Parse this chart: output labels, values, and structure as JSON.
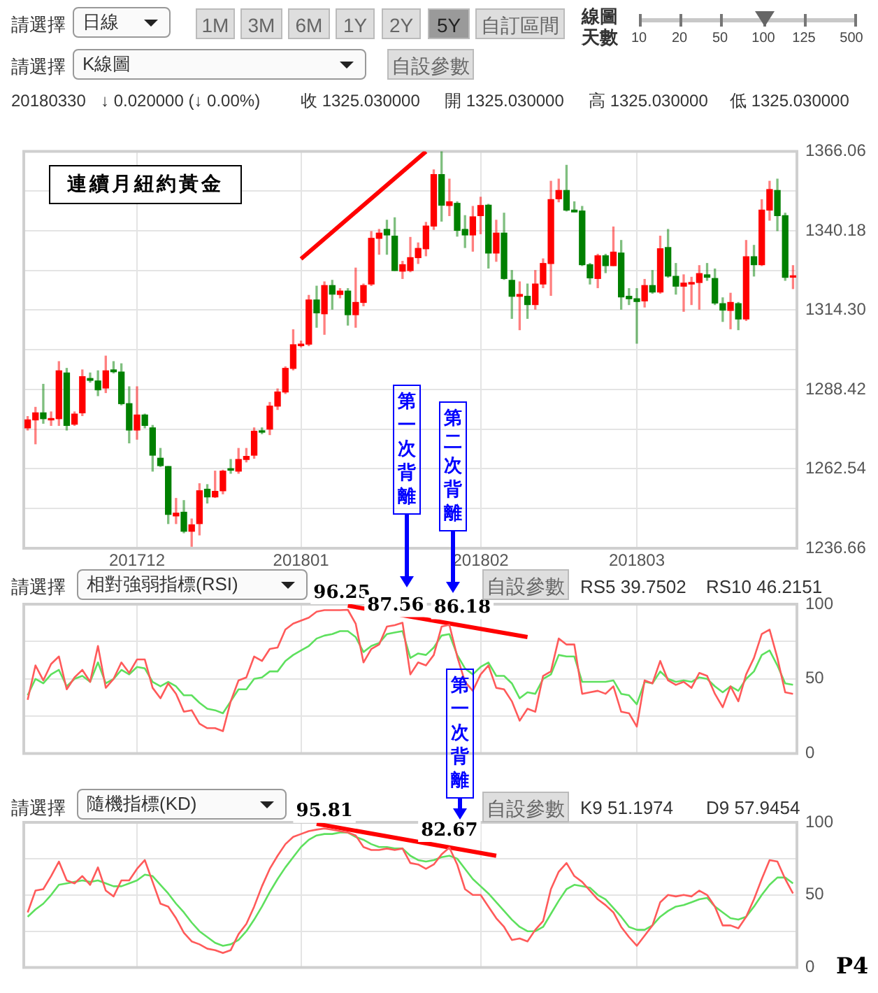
{
  "chart_data": [
    {
      "type": "candlestick",
      "title": "連續月紐約黃金",
      "categories": [
        null,
        null,
        null,
        null,
        null,
        null,
        null,
        null,
        null,
        null,
        null,
        null,
        null,
        null,
        "201712",
        null,
        null,
        null,
        null,
        null,
        null,
        null,
        null,
        null,
        null,
        null,
        null,
        null,
        null,
        null,
        null,
        null,
        null,
        null,
        null,
        "201801",
        null,
        null,
        null,
        null,
        null,
        null,
        null,
        null,
        null,
        null,
        null,
        null,
        null,
        null,
        null,
        null,
        null,
        null,
        null,
        null,
        null,
        null,
        "201802",
        null,
        null,
        null,
        null,
        null,
        null,
        null,
        null,
        null,
        null,
        null,
        null,
        null,
        null,
        null,
        null,
        null,
        null,
        null,
        "201803",
        null,
        null,
        null,
        null,
        null,
        null,
        null,
        null,
        null,
        null,
        null,
        null,
        null,
        null,
        null,
        null,
        null,
        null,
        null,
        null
      ],
      "ohlc": [
        [
          1275.9,
          1279.6,
          1275.2,
          1278.5
        ],
        [
          1278.5,
          1282.6,
          1270.7,
          1280.8
        ],
        [
          1280.8,
          1290.1,
          1277.4,
          1278.9
        ],
        [
          1278.5,
          1281.1,
          1276.7,
          1278.9
        ],
        [
          1278.9,
          1297.5,
          1276.7,
          1294.5
        ],
        [
          1293.8,
          1295.3,
          1275.2,
          1276.7
        ],
        [
          1277.1,
          1281.1,
          1276.7,
          1280.4
        ],
        [
          1280.8,
          1294.8,
          1279.9,
          1292.6
        ],
        [
          1292.0,
          1293.8,
          1290.8,
          1291.4
        ],
        [
          1291.2,
          1294.5,
          1286.4,
          1288.3
        ],
        [
          1288.9,
          1299.3,
          1287.4,
          1294.5
        ],
        [
          1294.8,
          1297.5,
          1293.8,
          1294.2
        ],
        [
          1294.1,
          1296.8,
          1283.4,
          1283.8
        ],
        [
          1283.8,
          1289.3,
          1271.0,
          1275.2
        ],
        [
          1275.2,
          1289.3,
          1272.2,
          1280.1
        ],
        [
          1280.1,
          1280.4,
          1275.9,
          1276.7
        ],
        [
          1275.9,
          1276.7,
          1261.8,
          1267.0
        ],
        [
          1266.0,
          1269.2,
          1263.3,
          1263.6
        ],
        [
          1263.3,
          1263.3,
          1244.7,
          1247.7
        ],
        [
          1247.2,
          1252.9,
          1244.7,
          1248.1
        ],
        [
          1248.4,
          1252.2,
          1241.7,
          1242.2
        ],
        [
          1242.2,
          1246.2,
          1237.3,
          1244.3
        ],
        [
          1244.7,
          1257.7,
          1241.0,
          1255.4
        ],
        [
          1255.9,
          1257.4,
          1251.4,
          1253.4
        ],
        [
          1253.4,
          1261.8,
          1253.2,
          1255.2
        ],
        [
          1255.4,
          1262.1,
          1254.4,
          1261.8
        ],
        [
          1262.6,
          1265.6,
          1261.1,
          1262.1
        ],
        [
          1261.8,
          1269.2,
          1261.1,
          1265.6
        ],
        [
          1265.6,
          1269.2,
          1264.8,
          1266.6
        ],
        [
          1267.0,
          1275.9,
          1266.0,
          1274.8
        ],
        [
          1274.9,
          1275.9,
          1274.0,
          1274.5
        ],
        [
          1275.5,
          1284.2,
          1273.7,
          1283.0
        ],
        [
          1283.0,
          1288.6,
          1281.9,
          1287.6
        ],
        [
          1287.6,
          1295.8,
          1287.1,
          1295.3
        ],
        [
          1295.3,
          1307.9,
          1294.8,
          1303.0
        ],
        [
          1302.7,
          1304.2,
          1302.3,
          1303.2
        ],
        [
          1303.2,
          1319.1,
          1302.7,
          1317.6
        ],
        [
          1317.6,
          1322.1,
          1308.7,
          1313.4
        ],
        [
          1313.1,
          1323.5,
          1306.4,
          1322.3
        ],
        [
          1322.3,
          1324.0,
          1314.6,
          1319.5
        ],
        [
          1319.4,
          1321.3,
          1318.3,
          1320.5
        ],
        [
          1320.5,
          1321.3,
          1309.4,
          1312.8
        ],
        [
          1312.8,
          1328.0,
          1308.7,
          1316.8
        ],
        [
          1316.8,
          1322.8,
          1315.7,
          1322.3
        ],
        [
          1322.8,
          1339.9,
          1322.3,
          1337.7
        ],
        [
          1337.7,
          1340.6,
          1332.5,
          1339.4
        ],
        [
          1340.6,
          1343.6,
          1332.5,
          1338.8
        ],
        [
          1338.4,
          1344.4,
          1327.2,
          1327.2
        ],
        [
          1327.0,
          1330.2,
          1324.6,
          1329.1
        ],
        [
          1327.2,
          1338.0,
          1326.8,
          1331.4
        ],
        [
          1331.4,
          1336.2,
          1329.5,
          1334.4
        ],
        [
          1334.3,
          1342.9,
          1332.0,
          1341.7
        ],
        [
          1341.7,
          1360.0,
          1340.6,
          1358.5
        ],
        [
          1358.5,
          1366.0,
          1343.3,
          1348.5
        ],
        [
          1348.4,
          1357.0,
          1345.1,
          1349.6
        ],
        [
          1349.1,
          1349.6,
          1338.4,
          1340.3
        ],
        [
          1340.6,
          1345.1,
          1334.7,
          1338.8
        ],
        [
          1338.8,
          1348.1,
          1333.5,
          1344.7
        ],
        [
          1345.1,
          1351.1,
          1339.2,
          1348.4
        ],
        [
          1348.5,
          1348.8,
          1328.0,
          1332.9
        ],
        [
          1332.9,
          1343.6,
          1330.2,
          1339.4
        ],
        [
          1339.4,
          1345.9,
          1324.3,
          1324.6
        ],
        [
          1324.0,
          1327.2,
          1311.6,
          1318.8
        ],
        [
          1318.8,
          1323.5,
          1307.9,
          1319.4
        ],
        [
          1318.8,
          1322.8,
          1311.6,
          1316.1
        ],
        [
          1316.1,
          1327.2,
          1314.6,
          1322.8
        ],
        [
          1322.8,
          1331.0,
          1321.6,
          1329.5
        ],
        [
          1329.5,
          1356.3,
          1319.1,
          1350.3
        ],
        [
          1350.6,
          1357.0,
          1349.6,
          1353.3
        ],
        [
          1353.3,
          1361.5,
          1346.6,
          1346.9
        ],
        [
          1346.9,
          1349.6,
          1346.3,
          1346.3
        ],
        [
          1346.6,
          1348.1,
          1328.8,
          1329.1
        ],
        [
          1329.1,
          1329.5,
          1322.8,
          1324.8
        ],
        [
          1324.6,
          1332.5,
          1321.6,
          1332.0
        ],
        [
          1332.0,
          1332.5,
          1326.5,
          1328.8
        ],
        [
          1328.8,
          1341.4,
          1328.8,
          1333.2
        ],
        [
          1332.9,
          1337.0,
          1314.6,
          1318.6
        ],
        [
          1318.8,
          1321.3,
          1316.1,
          1318.0
        ],
        [
          1318.0,
          1321.3,
          1303.5,
          1317.1
        ],
        [
          1317.3,
          1324.3,
          1315.3,
          1322.3
        ],
        [
          1322.3,
          1327.2,
          1319.8,
          1320.2
        ],
        [
          1320.2,
          1338.4,
          1319.8,
          1334.3
        ],
        [
          1334.7,
          1340.6,
          1325.0,
          1325.4
        ],
        [
          1325.3,
          1329.5,
          1319.5,
          1322.1
        ],
        [
          1322.1,
          1325.8,
          1313.9,
          1323.1
        ],
        [
          1322.8,
          1325.0,
          1316.1,
          1323.3
        ],
        [
          1323.3,
          1328.8,
          1314.6,
          1326.2
        ],
        [
          1325.8,
          1329.5,
          1324.0,
          1325.0
        ],
        [
          1324.6,
          1327.7,
          1316.1,
          1316.6
        ],
        [
          1316.4,
          1318.3,
          1310.6,
          1314.3
        ],
        [
          1314.2,
          1319.8,
          1308.2,
          1316.8
        ],
        [
          1316.4,
          1316.8,
          1307.9,
          1311.4
        ],
        [
          1311.4,
          1337.0,
          1310.9,
          1331.7
        ],
        [
          1331.7,
          1335.4,
          1325.4,
          1329.1
        ],
        [
          1329.1,
          1350.3,
          1328.8,
          1346.9
        ],
        [
          1346.9,
          1356.3,
          1343.6,
          1353.6
        ],
        [
          1353.3,
          1357.0,
          1340.2,
          1345.1
        ],
        [
          1345.1,
          1345.9,
          1324.0,
          1325.0
        ],
        [
          1325.03,
          1328.8,
          1321.3,
          1325.03
        ]
      ],
      "colors": [
        "#ff0000",
        "#ff0000",
        "#008000",
        "#ff0000",
        "#ff0000",
        "#008000",
        "#ff0000",
        "#ff0000",
        "#008000",
        "#008000",
        "#ff0000",
        "#008000",
        "#008000",
        "#008000",
        "#ff0000",
        "#008000",
        "#008000",
        "#008000",
        "#008000",
        "#ff0000",
        "#008000",
        "#ff0000",
        "#ff0000",
        "#008000",
        "#ff0000",
        "#ff0000",
        "#008000",
        "#ff0000",
        "#ff0000",
        "#ff0000",
        "#008000",
        "#ff0000",
        "#ff0000",
        "#ff0000",
        "#ff0000",
        "#ff0000",
        "#ff0000",
        "#008000",
        "#ff0000",
        "#008000",
        "#ff0000",
        "#008000",
        "#ff0000",
        "#ff0000",
        "#ff0000",
        "#ff0000",
        "#008000",
        "#008000",
        "#ff0000",
        "#ff0000",
        "#ff0000",
        "#ff0000",
        "#ff0000",
        "#008000",
        "#ff0000",
        "#008000",
        "#008000",
        "#ff0000",
        "#ff0000",
        "#008000",
        "#ff0000",
        "#008000",
        "#008000",
        "#ff0000",
        "#008000",
        "#ff0000",
        "#ff0000",
        "#ff0000",
        "#ff0000",
        "#008000",
        "#008000",
        "#008000",
        "#008000",
        "#ff0000",
        "#008000",
        "#ff0000",
        "#008000",
        "#008000",
        "#008000",
        "#ff0000",
        "#008000",
        "#ff0000",
        "#008000",
        "#008000",
        "#ff0000",
        "#ff0000",
        "#ff0000",
        "#008000",
        "#008000",
        "#008000",
        "#ff0000",
        "#008000",
        "#ff0000",
        "#008000",
        "#ff0000",
        "#ff0000",
        "#008000",
        "#008000",
        "#ff0000"
      ],
      "series": [
        {
          "type": "line",
          "color": "#ff0000",
          "values": [
            null,
            null,
            null,
            null,
            null,
            null,
            null,
            null,
            null,
            null,
            null,
            null,
            null,
            null,
            null,
            null,
            null,
            null,
            null,
            null,
            null,
            null,
            null,
            null,
            null,
            null,
            null,
            null,
            null,
            null,
            null,
            null,
            null,
            null,
            null,
            1331,
            null,
            null,
            null,
            null,
            null,
            null,
            null,
            null,
            null,
            null,
            null,
            null,
            null,
            null,
            null,
            1366,
            null,
            null,
            null,
            null,
            null,
            null,
            null,
            null,
            null,
            null,
            null,
            null,
            null,
            null,
            null,
            null,
            null,
            null,
            null,
            null,
            null,
            null,
            null,
            null,
            null,
            null,
            null,
            null,
            null,
            null,
            null,
            null,
            null,
            null,
            null,
            null,
            null,
            null,
            null,
            null,
            null,
            null,
            null,
            null,
            null,
            null,
            null
          ]
        }
      ],
      "ylim": [
        1236.66,
        1366.06
      ],
      "yticks": [
        {
          "value": 1236.66,
          "label": "1236.66"
        },
        {
          "value": 1249.6,
          "label": null
        },
        {
          "value": 1262.54,
          "label": "1262.54"
        },
        {
          "value": 1275.48,
          "label": null
        },
        {
          "value": 1288.42,
          "label": "1288.42"
        },
        {
          "value": 1301.36,
          "label": null
        },
        {
          "value": 1314.3,
          "label": "1314.30"
        },
        {
          "value": 1327.24,
          "label": null
        },
        {
          "value": 1340.18,
          "label": "1340.18"
        },
        {
          "value": 1353.12,
          "label": null
        },
        {
          "value": 1366.06,
          "label": "1366.06"
        }
      ],
      "grid": true,
      "annotations": [
        "請選擇",
        "日線",
        "1M",
        "3M",
        "6M",
        "1Y",
        "2Y",
        "5Y",
        "自訂區間",
        "線圖天數",
        "10",
        "20",
        "50",
        "100",
        "125",
        "500",
        "請選擇",
        "K線圖",
        "自設參數",
        "20180330",
        "↓ 0.020000 (↓ 0.00%)",
        "收 1325.030000",
        "開 1325.030000",
        "高 1325.030000",
        "低 1325.030000",
        "第一次背離",
        "第二次背離"
      ]
    },
    {
      "type": "line",
      "categories": [
        null,
        null,
        null,
        null,
        null,
        null,
        null,
        null,
        null,
        null,
        null,
        null,
        null,
        null,
        "201712",
        null,
        null,
        null,
        null,
        null,
        null,
        null,
        null,
        null,
        null,
        null,
        null,
        null,
        null,
        null,
        null,
        null,
        null,
        null,
        null,
        "201801",
        null,
        null,
        null,
        null,
        null,
        null,
        null,
        null,
        null,
        null,
        null,
        null,
        null,
        null,
        null,
        null,
        null,
        null,
        null,
        null,
        null,
        null,
        "201802",
        null,
        null,
        null,
        null,
        null,
        null,
        null,
        null,
        null,
        null,
        null,
        null,
        null,
        null,
        null,
        null,
        null,
        null,
        null,
        "201803",
        null,
        null,
        null,
        null,
        null,
        null,
        null,
        null,
        null,
        null,
        null,
        null,
        null,
        null,
        null,
        null,
        null,
        null,
        null,
        null
      ],
      "tick_labels": "y",
      "series": [
        {
          "color": "#ff5a5a",
          "values": [
            36,
            59,
            49,
            60,
            65,
            43,
            51,
            56,
            48,
            72,
            44,
            50,
            61,
            54,
            63,
            63,
            44,
            37,
            47,
            40,
            28,
            29,
            20,
            17,
            17,
            15,
            35,
            49,
            51,
            65,
            62,
            70,
            71,
            83,
            87,
            89,
            91,
            95,
            96,
            96,
            96,
            96.25,
            87,
            61,
            70,
            73,
            85,
            86,
            87.56,
            53,
            61,
            59,
            66,
            85,
            86.18,
            65,
            48,
            42,
            53,
            59,
            44,
            43,
            35,
            22,
            30,
            28,
            52,
            55,
            77,
            73,
            73,
            40,
            41,
            42,
            40,
            45,
            28,
            27,
            18,
            49,
            47,
            62,
            49,
            46,
            48,
            44,
            54,
            52,
            40,
            31,
            45,
            35,
            53,
            64,
            80,
            83,
            64,
            41,
            40
          ],
          "value_labels": [
            null,
            null,
            null,
            null,
            null,
            null,
            null,
            null,
            null,
            null,
            null,
            null,
            null,
            null,
            null,
            null,
            null,
            null,
            null,
            null,
            null,
            null,
            null,
            null,
            null,
            null,
            null,
            null,
            null,
            null,
            null,
            null,
            null,
            null,
            null,
            null,
            null,
            null,
            null,
            null,
            null,
            "96.25",
            null,
            null,
            null,
            null,
            null,
            null,
            "87.56",
            null,
            null,
            null,
            null,
            null,
            "86.18",
            null,
            null,
            null,
            null,
            null,
            null,
            null,
            null,
            null,
            null,
            null,
            null,
            null,
            null,
            null,
            null,
            null,
            null,
            null,
            null,
            null,
            null,
            null,
            null,
            null,
            null,
            null,
            null,
            null,
            null,
            null,
            null,
            null,
            null,
            null,
            null,
            null,
            null,
            null,
            null,
            null,
            null,
            null,
            null
          ]
        },
        {
          "color": "#5ee05e",
          "values": [
            39,
            50,
            47,
            53,
            56,
            45,
            50,
            52,
            48,
            61,
            47,
            50,
            56,
            53,
            58,
            57,
            48,
            45,
            48,
            45,
            39,
            39,
            34,
            30,
            29,
            27,
            35,
            43,
            43,
            50,
            51,
            55,
            55,
            62,
            66,
            69,
            72,
            77,
            79,
            80,
            82,
            82,
            78,
            68,
            72,
            74,
            80,
            81,
            82,
            64,
            67,
            66,
            71,
            79,
            80,
            66,
            57,
            53,
            58,
            61,
            52,
            52,
            47,
            37,
            41,
            40,
            50,
            53,
            66,
            65,
            65,
            48,
            48,
            48,
            48,
            49,
            40,
            39,
            33,
            48,
            47,
            55,
            50,
            48,
            49,
            48,
            51,
            50,
            45,
            41,
            45,
            42,
            50,
            55,
            66,
            69,
            59,
            47,
            46
          ]
        },
        {
          "color": "#ff0000",
          "values": [
            null,
            null,
            null,
            null,
            null,
            null,
            null,
            null,
            null,
            null,
            null,
            null,
            null,
            null,
            null,
            null,
            null,
            null,
            null,
            null,
            null,
            null,
            null,
            null,
            null,
            null,
            null,
            null,
            null,
            null,
            null,
            null,
            null,
            null,
            null,
            null,
            null,
            null,
            null,
            null,
            null,
            99,
            null,
            null,
            null,
            null,
            null,
            null,
            null,
            null,
            null,
            null,
            null,
            null,
            null,
            null,
            null,
            null,
            null,
            null,
            null,
            null,
            null,
            null,
            78,
            null,
            null,
            null,
            null,
            null,
            null,
            null,
            null,
            null,
            null,
            null,
            null,
            null,
            null,
            null,
            null,
            null,
            null,
            null,
            null,
            null,
            null,
            null,
            null,
            null,
            null,
            null,
            null,
            null,
            null,
            null,
            null,
            null,
            null
          ]
        }
      ],
      "ylim": [
        0,
        100
      ],
      "yticks": [
        0,
        {
          "value": 25,
          "label": null
        },
        50,
        {
          "value": 75,
          "label": null
        },
        100
      ],
      "grid": true,
      "annotations": [
        "請選擇",
        "相對強弱指標(RSI)",
        "自設參數",
        "RS5 39.7502",
        "RS10 46.2151",
        "第一次背離"
      ]
    },
    {
      "type": "line",
      "categories": [
        null,
        null,
        null,
        null,
        null,
        null,
        null,
        null,
        null,
        null,
        null,
        null,
        null,
        null,
        "201712",
        null,
        null,
        null,
        null,
        null,
        null,
        null,
        null,
        null,
        null,
        null,
        null,
        null,
        null,
        null,
        null,
        null,
        null,
        null,
        null,
        "201801",
        null,
        null,
        null,
        null,
        null,
        null,
        null,
        null,
        null,
        null,
        null,
        null,
        null,
        null,
        null,
        null,
        null,
        null,
        null,
        null,
        null,
        null,
        "201802",
        null,
        null,
        null,
        null,
        null,
        null,
        null,
        null,
        null,
        null,
        null,
        null,
        null,
        null,
        null,
        null,
        null,
        null,
        null,
        "201803",
        null,
        null,
        null,
        null,
        null,
        null,
        null,
        null,
        null,
        null,
        null,
        null,
        null,
        null,
        null,
        null,
        null,
        null,
        null,
        null
      ],
      "tick_labels": "y",
      "series": [
        {
          "color": "#ff5a5a",
          "values": [
            38,
            53,
            54,
            63,
            73,
            60,
            58,
            63,
            57,
            69,
            53,
            49,
            60,
            60,
            68,
            74,
            59,
            44,
            42,
            34,
            24,
            18,
            16,
            13,
            12,
            10,
            12,
            23,
            30,
            42,
            56,
            68,
            77,
            85,
            90,
            92,
            94,
            95,
            95.81,
            95,
            94,
            93,
            91,
            83,
            81,
            81,
            82,
            81,
            82,
            72,
            71,
            68,
            71,
            78,
            82.67,
            71,
            54,
            50,
            50,
            42,
            34,
            28,
            19,
            20,
            18,
            26,
            32,
            54,
            66,
            72,
            63,
            59,
            53,
            47,
            43,
            38,
            28,
            21,
            15,
            22,
            29,
            45,
            50,
            49,
            50,
            49,
            53,
            50,
            42,
            29,
            29,
            27,
            35,
            47,
            61,
            74,
            73,
            61,
            51
          ],
          "value_labels": [
            null,
            null,
            null,
            null,
            null,
            null,
            null,
            null,
            null,
            null,
            null,
            null,
            null,
            null,
            null,
            null,
            null,
            null,
            null,
            null,
            null,
            null,
            null,
            null,
            null,
            null,
            null,
            null,
            null,
            null,
            null,
            null,
            null,
            null,
            null,
            null,
            null,
            null,
            "95.81",
            null,
            null,
            null,
            null,
            null,
            null,
            null,
            null,
            null,
            null,
            null,
            null,
            null,
            null,
            null,
            "82.67",
            null,
            null,
            null,
            null,
            null,
            null,
            null,
            null,
            null,
            null,
            null,
            null,
            null,
            null,
            null,
            null,
            null,
            null,
            null,
            null,
            null,
            null,
            null,
            null,
            null,
            null,
            null,
            null,
            null,
            null,
            null,
            null,
            null,
            null,
            null,
            null,
            null,
            null,
            null,
            null,
            null,
            null,
            null,
            null
          ]
        },
        {
          "color": "#5ee05e",
          "values": [
            35,
            40,
            44,
            50,
            57,
            58,
            59,
            60,
            59,
            60,
            58,
            56,
            56,
            58,
            60,
            64,
            63,
            57,
            51,
            44,
            38,
            31,
            25,
            21,
            17,
            15,
            16,
            19,
            25,
            33,
            42,
            52,
            61,
            69,
            76,
            83,
            88,
            91,
            92,
            92,
            93,
            93,
            90,
            88,
            85,
            83,
            83,
            82,
            82,
            77,
            74,
            73,
            74,
            76,
            77,
            75,
            68,
            61,
            56,
            51,
            45,
            39,
            33,
            28,
            25,
            25,
            28,
            37,
            46,
            54,
            57,
            56,
            55,
            50,
            47,
            41,
            35,
            28,
            26,
            26,
            29,
            35,
            39,
            42,
            43,
            45,
            47,
            48,
            42,
            38,
            34,
            33,
            35,
            42,
            50,
            57,
            62,
            62,
            58
          ]
        },
        {
          "color": "#ff0000",
          "values": [
            null,
            null,
            null,
            null,
            null,
            null,
            null,
            null,
            null,
            null,
            null,
            null,
            null,
            null,
            null,
            null,
            null,
            null,
            null,
            null,
            null,
            null,
            null,
            null,
            null,
            null,
            null,
            null,
            null,
            null,
            null,
            null,
            null,
            null,
            null,
            null,
            null,
            99,
            null,
            null,
            null,
            null,
            null,
            null,
            null,
            null,
            null,
            null,
            null,
            null,
            null,
            null,
            null,
            null,
            null,
            null,
            null,
            null,
            null,
            null,
            77,
            null,
            null,
            null,
            null,
            null,
            null,
            null,
            null,
            null,
            null,
            null,
            null,
            null,
            null,
            null,
            null,
            null,
            null,
            null,
            null,
            null,
            null,
            null,
            null,
            null,
            null,
            null,
            null,
            null,
            null,
            null,
            null,
            null,
            null,
            null,
            null,
            null,
            null
          ]
        }
      ],
      "ylim": [
        0,
        100
      ],
      "yticks": [
        0,
        {
          "value": 25,
          "label": null
        },
        50,
        {
          "value": 75,
          "label": null
        },
        100
      ],
      "grid": true,
      "annotations": [
        "請選擇",
        "隨機指標(KD)",
        "自設參數",
        "K9 51.1974",
        "D9 57.9454",
        "P4"
      ]
    }
  ]
}
